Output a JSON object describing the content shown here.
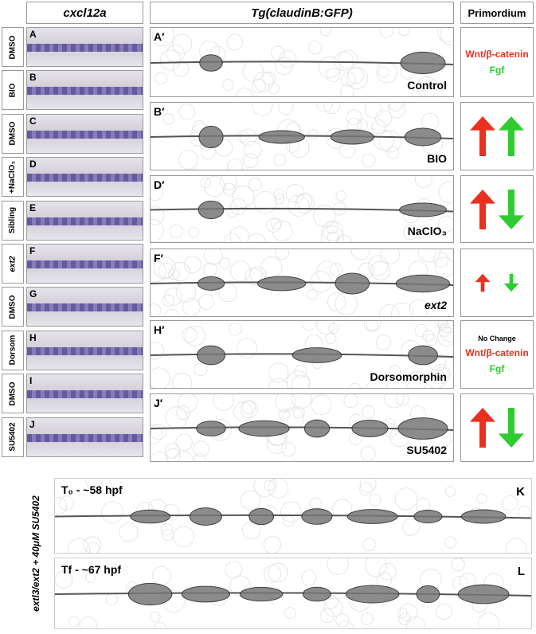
{
  "headers": {
    "left": "cxcl12a",
    "middle": "Tg(claudinB:GFP)",
    "right": "Primordium"
  },
  "left_panels": [
    {
      "condition": "DMSO",
      "letter": "A"
    },
    {
      "condition": "BIO",
      "letter": "B"
    },
    {
      "condition": "DMSO",
      "letter": "C"
    },
    {
      "condition": "+NaClO₃",
      "letter": "D"
    },
    {
      "condition": "Sibling",
      "letter": "E"
    },
    {
      "condition": "ext2",
      "letter": "F"
    },
    {
      "condition": "DMSO",
      "letter": "G"
    },
    {
      "condition": "Dorsom",
      "letter": "H"
    },
    {
      "condition": "DMSO",
      "letter": "I"
    },
    {
      "condition": "SU5402",
      "letter": "J"
    }
  ],
  "middle_panels": [
    {
      "letter": "A′",
      "label": "Control"
    },
    {
      "letter": "B′",
      "label": "BIO"
    },
    {
      "letter": "D′",
      "label": "NaClO₃"
    },
    {
      "letter": "F′",
      "label": "ext2"
    },
    {
      "letter": "H′",
      "label": "Dorsomorphin"
    },
    {
      "letter": "J′",
      "label": "SU5402"
    }
  ],
  "primordium": {
    "row1": {
      "wnt": "Wnt/β-catenin",
      "fgf": "Fgf"
    },
    "row5": {
      "note": "No Change",
      "wnt": "Wnt/β-catenin",
      "fgf": "Fgf"
    }
  },
  "bottom": {
    "side_label": "extl3/ext2 + 40μM SU5402",
    "panels": [
      {
        "time": "T₀ - ~58 hpf",
        "letter": "K"
      },
      {
        "time": "Tf - ~67 hpf",
        "letter": "L"
      }
    ]
  }
}
